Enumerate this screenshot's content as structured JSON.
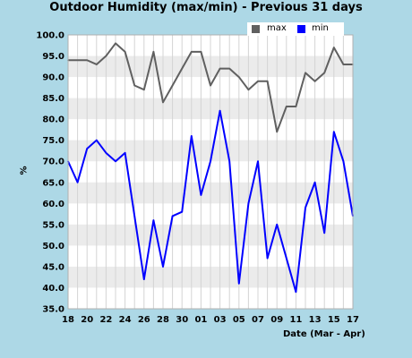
{
  "chart_data": {
    "type": "line",
    "title": "Outdoor Humidity (max/min) - Previous 31 days",
    "xlabel": "Date (Mar - Apr)",
    "ylabel": "%",
    "ylim": [
      35.0,
      100.0
    ],
    "yticks": [
      "35.0",
      "40.0",
      "45.0",
      "50.0",
      "55.0",
      "60.0",
      "65.0",
      "70.0",
      "75.0",
      "80.0",
      "85.0",
      "90.0",
      "95.0",
      "100.0"
    ],
    "x": [
      "18",
      "19",
      "20",
      "21",
      "22",
      "23",
      "24",
      "25",
      "26",
      "27",
      "28",
      "29",
      "30",
      "31",
      "01",
      "02",
      "03",
      "04",
      "05",
      "06",
      "07",
      "08",
      "09",
      "10",
      "11",
      "12",
      "13",
      "14",
      "15",
      "16",
      "17"
    ],
    "xtick_labels": [
      "18",
      "20",
      "22",
      "24",
      "26",
      "28",
      "30",
      "01",
      "03",
      "05",
      "07",
      "09",
      "11",
      "13",
      "15",
      "17"
    ],
    "legend_position": "top-right",
    "grid": true,
    "series": [
      {
        "name": "max",
        "color": "#606060",
        "values": [
          94,
          94,
          94,
          93,
          95,
          98,
          96,
          88,
          87,
          96,
          84,
          88,
          92,
          96,
          96,
          88,
          92,
          92,
          90,
          87,
          89,
          89,
          77,
          83,
          83,
          91,
          89,
          91,
          97,
          93,
          93
        ]
      },
      {
        "name": "min",
        "color": "#0000ff",
        "values": [
          70,
          65,
          73,
          75,
          72,
          70,
          72,
          57,
          42,
          56,
          45,
          57,
          58,
          76,
          62,
          70,
          82,
          70,
          41,
          60,
          70,
          47,
          55,
          47,
          39,
          59,
          65,
          53,
          77,
          70,
          57
        ]
      }
    ]
  }
}
